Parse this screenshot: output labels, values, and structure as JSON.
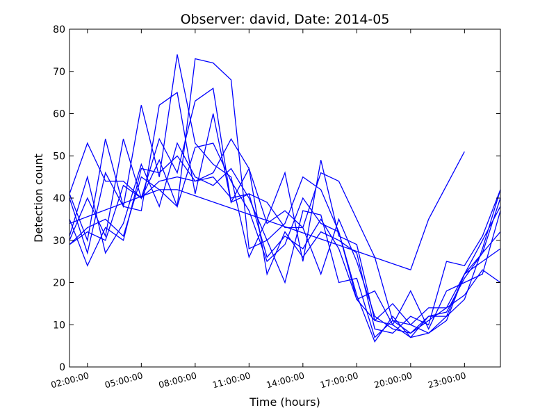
{
  "chart_data": {
    "type": "line",
    "title": "Observer: david, Date: 2014-05",
    "xlabel": "Time (hours)",
    "ylabel": "Detection count",
    "xlim_hours": [
      1,
      25
    ],
    "ylim": [
      0,
      80
    ],
    "yticks": [
      0,
      10,
      20,
      30,
      40,
      50,
      60,
      70,
      80
    ],
    "xticks": [
      {
        "h": 2,
        "label": "02:00:00"
      },
      {
        "h": 5,
        "label": "05:00:00"
      },
      {
        "h": 8,
        "label": "08:00:00"
      },
      {
        "h": 11,
        "label": "11:00:00"
      },
      {
        "h": 14,
        "label": "14:00:00"
      },
      {
        "h": 17,
        "label": "17:00:00"
      },
      {
        "h": 20,
        "label": "20:00:00"
      },
      {
        "h": 23,
        "label": "23:00:00"
      }
    ],
    "grid": false,
    "line_color": "#0000ff",
    "series": [
      {
        "x": [
          1,
          2,
          3,
          4,
          5,
          6,
          7,
          8,
          9,
          10,
          11,
          12,
          13,
          14,
          15,
          16,
          17,
          18,
          19,
          20,
          21,
          22,
          23,
          24,
          25
        ],
        "y": [
          41,
          53,
          44,
          44,
          40,
          44,
          45,
          44,
          46,
          54,
          47,
          34,
          37,
          33,
          46,
          44,
          35,
          26,
          11,
          10,
          8,
          12,
          16,
          28,
          42
        ]
      },
      {
        "x": [
          1,
          2,
          3,
          4,
          5,
          6,
          7,
          8,
          9,
          10,
          11,
          12,
          13,
          14,
          15,
          16,
          17,
          18,
          19,
          20,
          21,
          22,
          23,
          24,
          25
        ],
        "y": [
          31,
          45,
          27,
          34,
          48,
          38,
          53,
          45,
          43,
          47,
          40,
          30,
          34,
          45,
          42,
          32,
          17,
          6,
          12,
          7,
          12,
          13,
          21,
          27,
          32
        ]
      },
      {
        "x": [
          1,
          2,
          3,
          4,
          5,
          6,
          7,
          8,
          9,
          10,
          11,
          12,
          13,
          14,
          15,
          16,
          17,
          18,
          19,
          20,
          21,
          22,
          23,
          24,
          25
        ],
        "y": [
          29,
          33,
          35,
          31,
          45,
          42,
          38,
          73,
          72,
          68,
          28,
          30,
          20,
          37,
          36,
          20,
          21,
          7,
          11,
          8,
          11,
          14,
          22,
          27,
          40
        ]
      },
      {
        "x": [
          1,
          2,
          3,
          4,
          5,
          6,
          7,
          8,
          9,
          10,
          11,
          12,
          13,
          14,
          15,
          16,
          17,
          18,
          19,
          20,
          21,
          22,
          23,
          24,
          25
        ],
        "y": [
          35,
          24,
          33,
          30,
          47,
          46,
          50,
          44,
          45,
          40,
          41,
          26,
          31,
          28,
          35,
          28,
          16,
          18,
          10,
          18,
          9,
          18,
          20,
          22,
          37
        ]
      },
      {
        "x": [
          1,
          2,
          3,
          4,
          5,
          6,
          7,
          8,
          9,
          10,
          11,
          12,
          13,
          14,
          15,
          16,
          17,
          18,
          19,
          20,
          21,
          22,
          23,
          24,
          25
        ],
        "y": [
          40,
          27,
          46,
          38,
          62,
          45,
          74,
          53,
          48,
          45,
          26,
          35,
          46,
          25,
          49,
          31,
          29,
          11,
          15,
          10,
          14,
          14,
          17,
          23,
          20
        ]
      },
      {
        "x": [
          1,
          2,
          3,
          4,
          5,
          6,
          7,
          8,
          9,
          10,
          11,
          12,
          13,
          14,
          15,
          16,
          17,
          18,
          19,
          20,
          21,
          22,
          23,
          24,
          25
        ],
        "y": [
          41,
          30,
          54,
          38,
          37,
          62,
          65,
          41,
          60,
          39,
          47,
          22,
          32,
          26,
          32,
          30,
          27,
          9,
          8,
          12,
          10,
          25,
          24,
          31,
          42
        ]
      },
      {
        "x": [
          1,
          2,
          3,
          4,
          5,
          6,
          7,
          8,
          9,
          10,
          11,
          12,
          13,
          14,
          15,
          16,
          17,
          18,
          19,
          20,
          21,
          22,
          23,
          24,
          25
        ],
        "y": [
          30,
          40,
          31,
          54,
          40,
          54,
          46,
          63,
          66,
          39,
          41,
          39,
          33,
          33,
          22,
          35,
          25,
          12,
          9,
          8,
          12,
          12,
          22,
          25,
          28
        ]
      },
      {
        "x": [
          1,
          2,
          3,
          4,
          5,
          6,
          7,
          8,
          9,
          10,
          11,
          12,
          13,
          14,
          15,
          16,
          17,
          18,
          19,
          20,
          21,
          22,
          23,
          24,
          25
        ],
        "y": [
          29,
          32,
          30,
          43,
          40,
          49,
          38,
          52,
          53,
          44,
          37,
          25,
          29,
          40,
          34,
          32,
          16,
          11,
          10,
          7,
          8,
          11,
          22,
          30,
          38
        ]
      },
      {
        "x": [
          1,
          6,
          7,
          20,
          21,
          23
        ],
        "y": [
          34,
          42,
          42,
          23,
          35,
          51
        ]
      }
    ]
  }
}
